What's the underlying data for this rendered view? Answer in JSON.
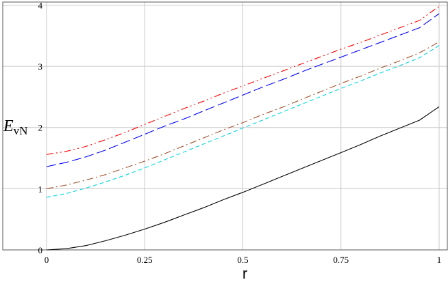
{
  "chart_data": {
    "type": "line",
    "title": "",
    "xlabel": "r",
    "ylabel_main": "E",
    "ylabel_sub": "vN",
    "xlim": [
      0,
      1
    ],
    "ylim": [
      0,
      4.05
    ],
    "grid": true,
    "x_ticks": [
      0,
      0.25,
      0.5,
      0.75,
      1
    ],
    "x_tick_labels": [
      "0",
      "0.25",
      "0.5",
      "0.75",
      "1"
    ],
    "y_ticks": [
      0,
      1,
      2,
      3,
      4
    ],
    "y_tick_labels": [
      "0",
      "1",
      "2",
      "3",
      "4"
    ],
    "x": [
      0,
      0.05,
      0.1,
      0.15,
      0.2,
      0.25,
      0.3,
      0.35,
      0.4,
      0.45,
      0.5,
      0.55,
      0.6,
      0.65,
      0.7,
      0.75,
      0.8,
      0.85,
      0.9,
      0.95,
      1
    ],
    "series": [
      {
        "color": "#ff0000",
        "dash": "10,4,2,4,2,4",
        "values": [
          1.56,
          1.61,
          1.69,
          1.8,
          1.92,
          2.05,
          2.18,
          2.31,
          2.43,
          2.56,
          2.68,
          2.8,
          2.92,
          3.04,
          3.16,
          3.28,
          3.39,
          3.51,
          3.63,
          3.75,
          3.98
        ]
      },
      {
        "color": "#0000ff",
        "dash": "14,5",
        "values": [
          1.36,
          1.43,
          1.52,
          1.63,
          1.76,
          1.89,
          2.02,
          2.14,
          2.27,
          2.4,
          2.53,
          2.66,
          2.78,
          2.91,
          3.03,
          3.15,
          3.27,
          3.39,
          3.51,
          3.63,
          3.86
        ]
      },
      {
        "color": "#a0522d",
        "dash": "10,4,2,4",
        "values": [
          1.0,
          1.06,
          1.14,
          1.23,
          1.34,
          1.45,
          1.57,
          1.7,
          1.83,
          1.96,
          2.08,
          2.21,
          2.33,
          2.46,
          2.59,
          2.72,
          2.84,
          2.97,
          3.09,
          3.22,
          3.4
        ]
      },
      {
        "color": "#00d8e0",
        "dash": "6,4",
        "values": [
          0.86,
          0.92,
          1.01,
          1.11,
          1.22,
          1.34,
          1.47,
          1.6,
          1.73,
          1.86,
          1.99,
          2.12,
          2.25,
          2.38,
          2.51,
          2.64,
          2.76,
          2.89,
          3.01,
          3.14,
          3.34
        ]
      },
      {
        "color": "#000000",
        "dash": "",
        "values": [
          0.0,
          0.02,
          0.07,
          0.15,
          0.24,
          0.34,
          0.45,
          0.57,
          0.69,
          0.82,
          0.94,
          1.07,
          1.2,
          1.33,
          1.46,
          1.59,
          1.72,
          1.86,
          1.99,
          2.12,
          2.34
        ]
      }
    ]
  }
}
